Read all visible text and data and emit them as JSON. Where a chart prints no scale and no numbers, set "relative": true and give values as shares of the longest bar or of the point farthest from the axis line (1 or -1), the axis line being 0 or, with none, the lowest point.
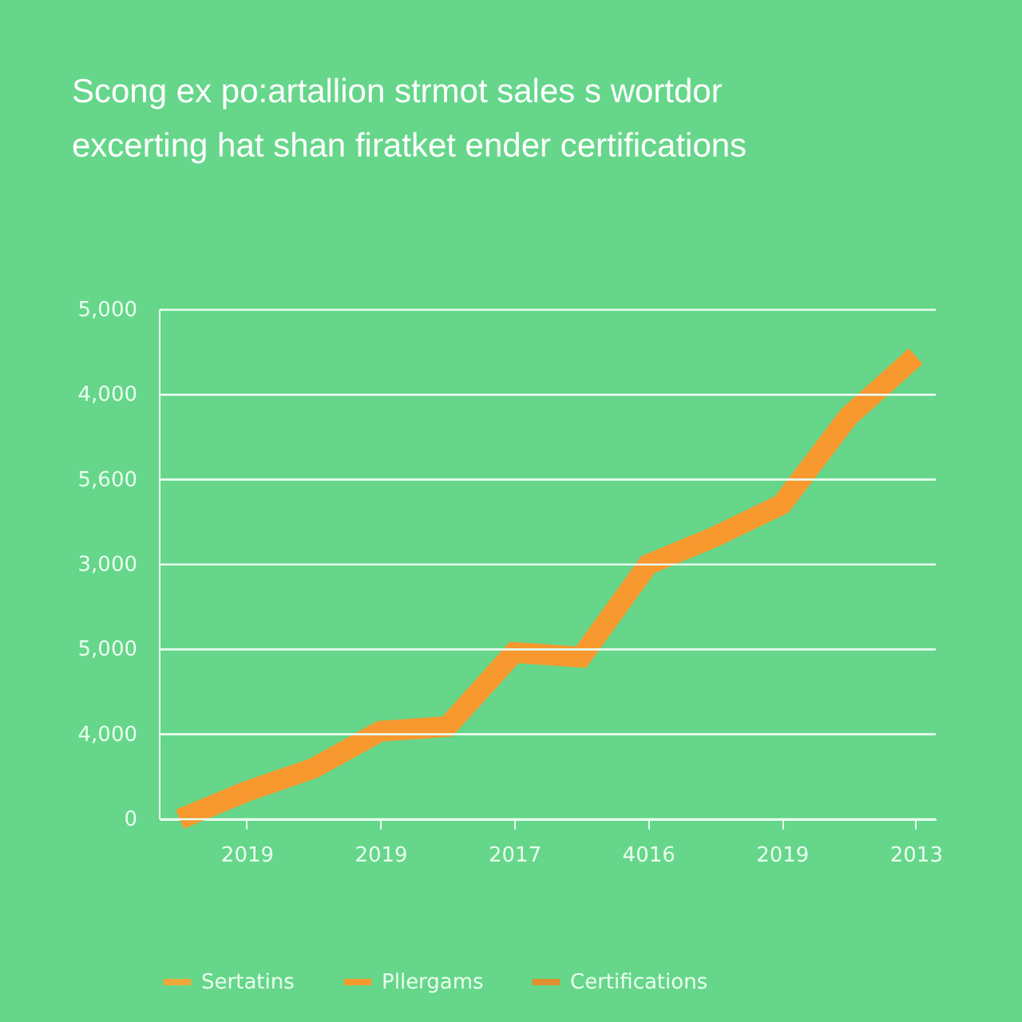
{
  "chart_data": {
    "type": "line",
    "title": "Scong ex po:artallion strmot sales s wortdor\nexcerting hat shan firatket ender certifications",
    "categories": [
      null,
      "2019",
      null,
      "2019",
      null,
      "2017",
      null,
      "4016",
      null,
      "2019",
      null,
      "2013"
    ],
    "relative": true,
    "series": [
      {
        "name": "Sertatins",
        "color": "#f0a83a",
        "values": [
          null,
          null,
          null,
          null,
          null,
          null,
          null,
          null,
          null,
          null,
          null,
          null
        ]
      },
      {
        "name": "Pllergams",
        "color": "#f7992f",
        "values": [
          0,
          0.06,
          0.11,
          0.19,
          0.2,
          0.36,
          0.35,
          0.55,
          0.61,
          0.68,
          0.87,
          1
        ]
      },
      {
        "name": "Certifications",
        "color": "#e0902e",
        "values": [
          null,
          null,
          null,
          null,
          null,
          null,
          null,
          null,
          null,
          null,
          null,
          null
        ]
      }
    ],
    "annotations": [
      "0",
      "4,000",
      "5,000",
      "3,000",
      "5,600",
      "4,000",
      "5,000"
    ],
    "grid": "y",
    "legend": "bottom"
  }
}
